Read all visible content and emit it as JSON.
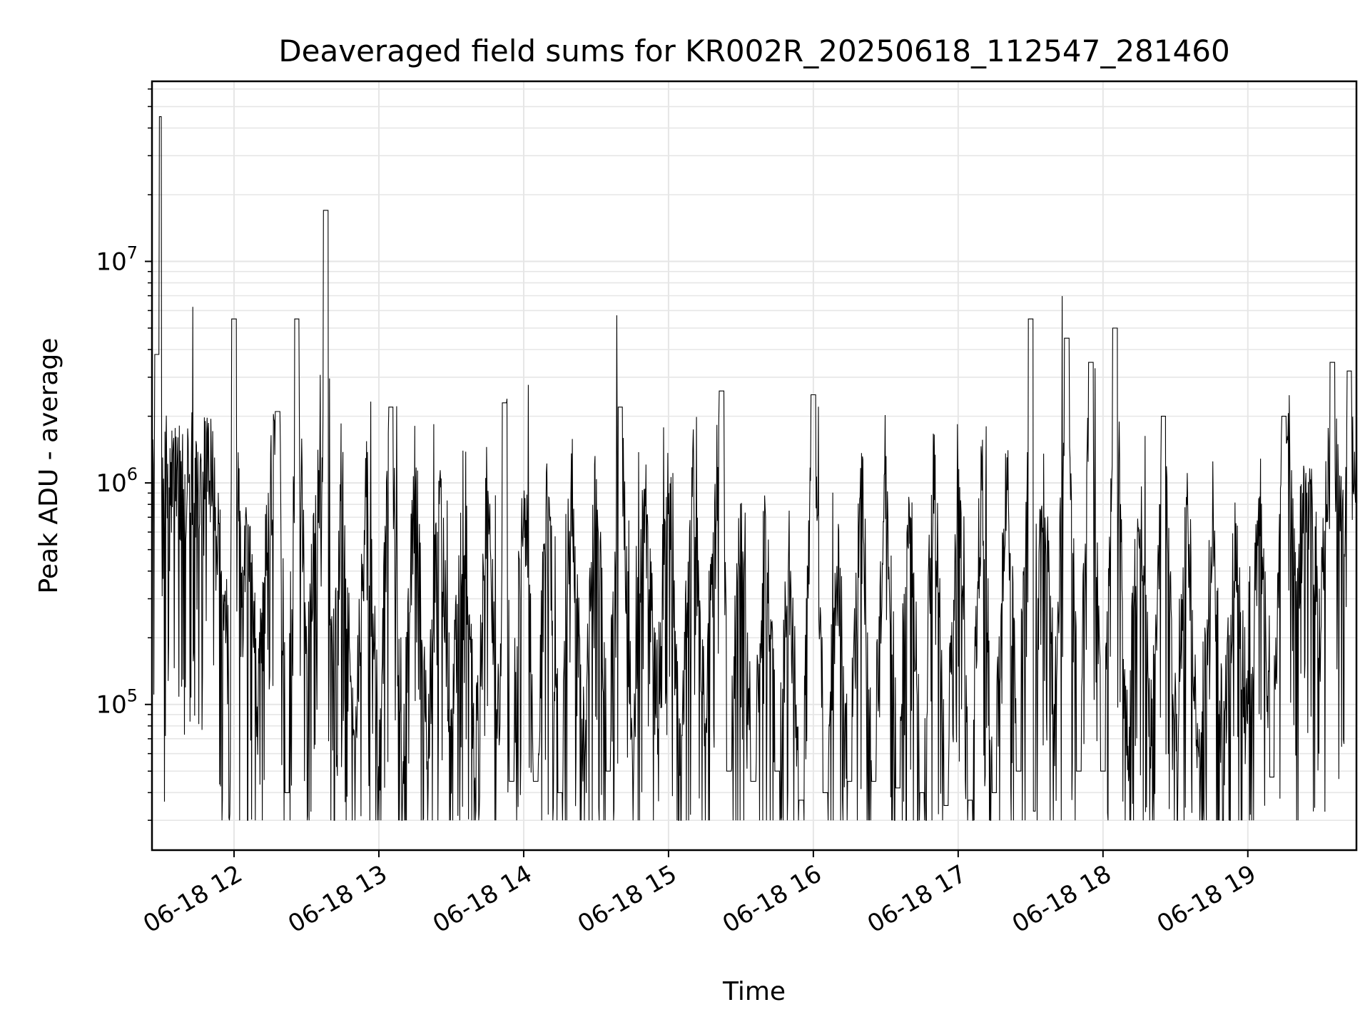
{
  "chart_data": {
    "type": "line",
    "title": "Deaveraged field sums for KR002R_20250618_112547_281460",
    "xlabel": "Time",
    "ylabel": "Peak ADU - average",
    "yscale": "log",
    "ylim": [
      22000,
      65000000
    ],
    "xlim": [
      "2025-06-18 11:26",
      "2025-06-18 19:45"
    ],
    "grid": true,
    "line_color": "#000000",
    "grid_color": "#e6e6e6",
    "x_ticks": [
      {
        "value": "2025-06-18 12:00",
        "label": "06-18 12"
      },
      {
        "value": "2025-06-18 13:00",
        "label": "06-18 13"
      },
      {
        "value": "2025-06-18 14:00",
        "label": "06-18 14"
      },
      {
        "value": "2025-06-18 15:00",
        "label": "06-18 15"
      },
      {
        "value": "2025-06-18 16:00",
        "label": "06-18 16"
      },
      {
        "value": "2025-06-18 17:00",
        "label": "06-18 17"
      },
      {
        "value": "2025-06-18 18:00",
        "label": "06-18 18"
      },
      {
        "value": "2025-06-18 19:00",
        "label": "06-18 19"
      }
    ],
    "y_ticks": [
      {
        "value": 100000,
        "base": "10",
        "exp": "5"
      },
      {
        "value": 1000000,
        "base": "10",
        "exp": "6"
      },
      {
        "value": 10000000,
        "base": "10",
        "exp": "7"
      }
    ],
    "series": [
      {
        "points": [
          [
            "2025-06-18 11:26",
            600000
          ],
          [
            "2025-06-18 11:28",
            3800000
          ],
          [
            "2025-06-18 11:29",
            45000000
          ],
          [
            "2025-06-18 11:30",
            1500000
          ],
          [
            "2025-06-18 11:32",
            1200000
          ],
          [
            "2025-06-18 11:35",
            1800000
          ],
          [
            "2025-06-18 11:38",
            900000
          ],
          [
            "2025-06-18 11:42",
            1500000
          ],
          [
            "2025-06-18 11:45",
            800000
          ],
          [
            "2025-06-18 11:50",
            1600000
          ],
          [
            "2025-06-18 11:55",
            400000
          ],
          [
            "2025-06-18 11:58",
            200000
          ],
          [
            "2025-06-18 12:00",
            5500000
          ],
          [
            "2025-06-18 12:03",
            250000
          ],
          [
            "2025-06-18 12:06",
            600000
          ],
          [
            "2025-06-18 12:10",
            90000
          ],
          [
            "2025-06-18 12:14",
            700000
          ],
          [
            "2025-06-18 12:18",
            2100000
          ],
          [
            "2025-06-18 12:22",
            40000
          ],
          [
            "2025-06-18 12:26",
            5500000
          ],
          [
            "2025-06-18 12:30",
            150000
          ],
          [
            "2025-06-18 12:35",
            900000
          ],
          [
            "2025-06-18 12:38",
            17000000
          ],
          [
            "2025-06-18 12:40",
            150000
          ],
          [
            "2025-06-18 12:45",
            900000
          ],
          [
            "2025-06-18 12:50",
            70000
          ],
          [
            "2025-06-18 12:55",
            1000000
          ],
          [
            "2025-06-18 13:00",
            60000
          ],
          [
            "2025-06-18 13:05",
            2200000
          ],
          [
            "2025-06-18 13:10",
            55000
          ],
          [
            "2025-06-18 13:15",
            1100000
          ],
          [
            "2025-06-18 13:20",
            60000
          ],
          [
            "2025-06-18 13:25",
            1000000
          ],
          [
            "2025-06-18 13:30",
            70000
          ],
          [
            "2025-06-18 13:35",
            900000
          ],
          [
            "2025-06-18 13:40",
            55000
          ],
          [
            "2025-06-18 13:45",
            1050000
          ],
          [
            "2025-06-18 13:50",
            60000
          ],
          [
            "2025-06-18 13:52",
            2300000
          ],
          [
            "2025-06-18 13:55",
            45000
          ],
          [
            "2025-06-18 14:00",
            1200000
          ],
          [
            "2025-06-18 14:05",
            45000
          ],
          [
            "2025-06-18 14:10",
            1100000
          ],
          [
            "2025-06-18 14:15",
            40000
          ],
          [
            "2025-06-18 14:20",
            1000000
          ],
          [
            "2025-06-18 14:25",
            60000
          ],
          [
            "2025-06-18 14:30",
            1100000
          ],
          [
            "2025-06-18 14:35",
            50000
          ],
          [
            "2025-06-18 14:40",
            2200000
          ],
          [
            "2025-06-18 14:45",
            60000
          ],
          [
            "2025-06-18 14:50",
            1000000
          ],
          [
            "2025-06-18 14:55",
            100000
          ],
          [
            "2025-06-18 15:00",
            1100000
          ],
          [
            "2025-06-18 15:05",
            70000
          ],
          [
            "2025-06-18 15:10",
            1200000
          ],
          [
            "2025-06-18 15:15",
            80000
          ],
          [
            "2025-06-18 15:20",
            1300000
          ],
          [
            "2025-06-18 15:22",
            2600000
          ],
          [
            "2025-06-18 15:25",
            50000
          ],
          [
            "2025-06-18 15:30",
            700000
          ],
          [
            "2025-06-18 15:35",
            45000
          ],
          [
            "2025-06-18 15:40",
            600000
          ],
          [
            "2025-06-18 15:45",
            50000
          ],
          [
            "2025-06-18 15:50",
            400000
          ],
          [
            "2025-06-18 15:55",
            37000
          ],
          [
            "2025-06-18 16:00",
            2500000
          ],
          [
            "2025-06-18 16:05",
            40000
          ],
          [
            "2025-06-18 16:10",
            450000
          ],
          [
            "2025-06-18 16:15",
            45000
          ],
          [
            "2025-06-18 16:20",
            1100000
          ],
          [
            "2025-06-18 16:25",
            45000
          ],
          [
            "2025-06-18 16:30",
            1200000
          ],
          [
            "2025-06-18 16:35",
            42000
          ],
          [
            "2025-06-18 16:40",
            1000000
          ],
          [
            "2025-06-18 16:45",
            40000
          ],
          [
            "2025-06-18 16:50",
            1300000
          ],
          [
            "2025-06-18 16:55",
            35000
          ],
          [
            "2025-06-18 17:00",
            1400000
          ],
          [
            "2025-06-18 17:05",
            37000
          ],
          [
            "2025-06-18 17:10",
            1300000
          ],
          [
            "2025-06-18 17:15",
            40000
          ],
          [
            "2025-06-18 17:20",
            1200000
          ],
          [
            "2025-06-18 17:25",
            50000
          ],
          [
            "2025-06-18 17:30",
            5500000
          ],
          [
            "2025-06-18 17:31",
            33000
          ],
          [
            "2025-06-18 17:35",
            1200000
          ],
          [
            "2025-06-18 17:40",
            80000
          ],
          [
            "2025-06-18 17:45",
            4500000
          ],
          [
            "2025-06-18 17:50",
            50000
          ],
          [
            "2025-06-18 17:55",
            3500000
          ],
          [
            "2025-06-18 18:00",
            50000
          ],
          [
            "2025-06-18 18:05",
            5000000
          ],
          [
            "2025-06-18 18:10",
            60000
          ],
          [
            "2025-06-18 18:15",
            800000
          ],
          [
            "2025-06-18 18:20",
            70000
          ],
          [
            "2025-06-18 18:25",
            2000000
          ],
          [
            "2025-06-18 18:30",
            80000
          ],
          [
            "2025-06-18 18:35",
            700000
          ],
          [
            "2025-06-18 18:40",
            55000
          ],
          [
            "2025-06-18 18:45",
            600000
          ],
          [
            "2025-06-18 18:50",
            70000
          ],
          [
            "2025-06-18 18:55",
            500000
          ],
          [
            "2025-06-18 19:00",
            65000
          ],
          [
            "2025-06-18 19:05",
            900000
          ],
          [
            "2025-06-18 19:10",
            47000
          ],
          [
            "2025-06-18 19:15",
            2000000
          ],
          [
            "2025-06-18 19:20",
            400000
          ],
          [
            "2025-06-18 19:25",
            900000
          ],
          [
            "2025-06-18 19:30",
            200000
          ],
          [
            "2025-06-18 19:35",
            3500000
          ],
          [
            "2025-06-18 19:40",
            600000
          ],
          [
            "2025-06-18 19:42",
            3200000
          ],
          [
            "2025-06-18 19:45",
            1200000
          ]
        ]
      }
    ]
  }
}
